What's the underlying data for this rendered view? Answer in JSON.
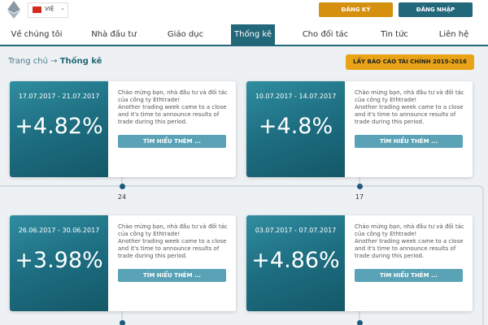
{
  "header": {
    "language": "VIỆ",
    "register": "ĐĂNG KÝ",
    "login": "ĐĂNG NHẬP"
  },
  "nav": [
    "Về chúng tôi",
    "Nhà đầu tư",
    "Giáo dục",
    "Thống kê",
    "Cho đối tác",
    "Tin tức",
    "Liên hệ"
  ],
  "breadcrumb": {
    "home": "Trang chủ",
    "arrow": "→",
    "current": "Thống kê"
  },
  "report_button": "LẤY BÁO CÁO TÀI CHÍNH 2015-2016",
  "cards": [
    {
      "dates": "17.07.2017 - 21.07.2017",
      "change": "+4.82%",
      "text": [
        "Chào mừng bạn, nhà đầu tư và đối tác",
        "của công ty Ethtrade!",
        "Another trading week came to a close",
        "and it's time to announce results of",
        "trade during this period."
      ],
      "button": "TÌM HIỂU THÊM ..."
    },
    {
      "dates": "10.07.2017 - 14.07.2017",
      "change": "+4.8%",
      "text": [
        "Chào mừng bạn, nhà đầu tư và đối tác",
        "của công ty Ethtrade!",
        "Another trading week came to a close",
        "and it's time to announce results of",
        "trade during this period."
      ],
      "button": "TÌM HIỂU THÊM ..."
    },
    {
      "dates": "26.06.2017 - 30.06.2017",
      "change": "+3.98%",
      "text": [
        "Chào mừng bạn, nhà đầu tư và đối tác",
        "của công ty Ethtrade!",
        "Another trading week came to a close",
        "and it's time to announce results of",
        "trade during this period."
      ],
      "button": "TÌM HIỂU THÊM ..."
    },
    {
      "dates": "03.07.2017 - 07.07.2017",
      "change": "+4.86%",
      "text": [
        "Chào mừng bạn, nhà đầu tư và đối tác",
        "của công ty Ethtrade!",
        "Another trading week came to a close",
        "and it's time to announce results of",
        "trade during this period."
      ],
      "button": "TÌM HIỂU THÊM ..."
    }
  ],
  "timeline": [
    "24",
    "17"
  ]
}
